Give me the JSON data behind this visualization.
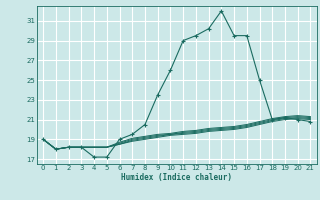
{
  "xlabel": "Humidex (Indice chaleur)",
  "background_color": "#cce8e8",
  "grid_color": "#ffffff",
  "line_color": "#1a6b60",
  "xlim": [
    -0.5,
    21.5
  ],
  "ylim": [
    16.5,
    32.5
  ],
  "xticks": [
    0,
    1,
    2,
    3,
    4,
    5,
    6,
    7,
    8,
    9,
    10,
    11,
    12,
    13,
    14,
    15,
    16,
    17,
    18,
    19,
    20,
    21
  ],
  "yticks": [
    17,
    19,
    21,
    23,
    25,
    27,
    29,
    31
  ],
  "main_x": [
    0,
    1,
    2,
    3,
    4,
    5,
    6,
    7,
    8,
    9,
    10,
    11,
    12,
    13,
    14,
    15,
    16,
    17,
    18,
    19,
    20,
    21
  ],
  "main_y": [
    19.0,
    18.0,
    18.2,
    18.2,
    17.2,
    17.2,
    19.0,
    19.5,
    20.5,
    23.5,
    26.0,
    29.0,
    29.5,
    30.2,
    32.0,
    29.5,
    29.5,
    25.0,
    21.0,
    21.2,
    21.0,
    20.8
  ],
  "flat_lines_y": [
    [
      19.0,
      18.0,
      18.2,
      18.2,
      18.2,
      18.2,
      18.5,
      18.8,
      19.0,
      19.2,
      19.4,
      19.5,
      19.6,
      19.8,
      19.9,
      20.0,
      20.2,
      20.5,
      20.8,
      21.0,
      21.1,
      21.0
    ],
    [
      19.0,
      18.0,
      18.2,
      18.2,
      18.2,
      18.2,
      18.5,
      18.9,
      19.1,
      19.3,
      19.5,
      19.6,
      19.7,
      19.9,
      20.0,
      20.1,
      20.3,
      20.6,
      20.9,
      21.1,
      21.2,
      21.1
    ],
    [
      19.0,
      18.0,
      18.2,
      18.2,
      18.2,
      18.2,
      18.6,
      19.0,
      19.2,
      19.4,
      19.5,
      19.7,
      19.8,
      20.0,
      20.1,
      20.2,
      20.4,
      20.7,
      21.0,
      21.2,
      21.3,
      21.2
    ],
    [
      19.0,
      18.0,
      18.2,
      18.2,
      18.2,
      18.2,
      18.7,
      19.1,
      19.3,
      19.5,
      19.6,
      19.8,
      19.9,
      20.1,
      20.2,
      20.3,
      20.5,
      20.8,
      21.1,
      21.3,
      21.4,
      21.3
    ]
  ]
}
